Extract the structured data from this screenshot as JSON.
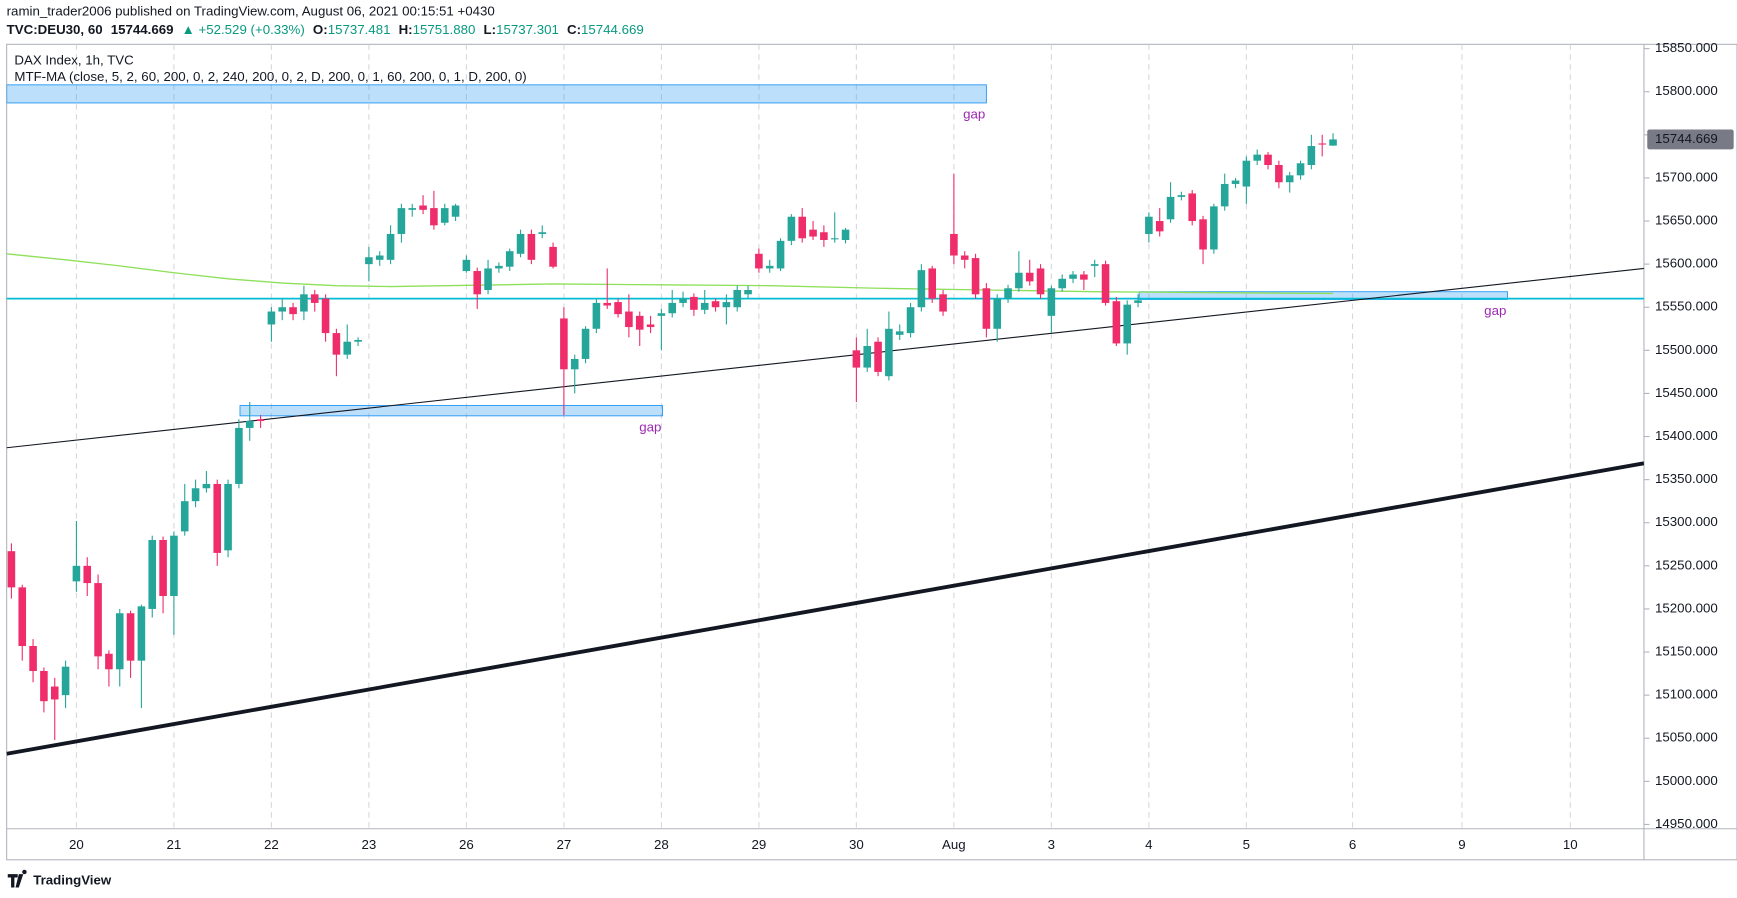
{
  "chart_data": {
    "type": "candlestick",
    "header": {
      "author_line": "ramin_trader2006 published on TradingView.com, August 06, 2021 00:15:51 +0430",
      "symbol": "TVC:DEU30, 60",
      "change": "▲ +52.529 (+0.33%)",
      "ohlc_legend": [
        {
          "label": "O:",
          "value": "15737.481"
        },
        {
          "label": "H:",
          "value": "15751.880"
        },
        {
          "label": "L:",
          "value": "15737.301"
        },
        {
          "label": "C:",
          "value": "15744.669"
        }
      ]
    },
    "title": "DAX Index, 1h, TVC",
    "indicator": "MTF-MA (close, 5, 2, 60, 200, 0, 2, 240, 200, 0, 2, D, 200, 0, 1, 60, 200, 0, 1, D, 200, 0)",
    "brand": "TradingView",
    "last_price": 15744.669,
    "up_color": "#26a69a",
    "down_color": "#ef2d6a",
    "grid": "vertical",
    "xlim": [
      -0.44,
      150.7
    ],
    "ylim": [
      14945,
      15855
    ],
    "xticks": [
      {
        "value": 6,
        "label": "20"
      },
      {
        "value": 15,
        "label": "21"
      },
      {
        "value": 24,
        "label": "22"
      },
      {
        "value": 33,
        "label": "23"
      },
      {
        "value": 42,
        "label": "26"
      },
      {
        "value": 51,
        "label": "27"
      },
      {
        "value": 60,
        "label": "28"
      },
      {
        "value": 69,
        "label": "29"
      },
      {
        "value": 78,
        "label": "30"
      },
      {
        "value": 87,
        "label": "Aug"
      },
      {
        "value": 96,
        "label": "3"
      },
      {
        "value": 105,
        "label": "4"
      },
      {
        "value": 114,
        "label": "5"
      },
      {
        "value": 123.8,
        "label": "6"
      },
      {
        "value": 133.9,
        "label": "9"
      },
      {
        "value": 143.9,
        "label": "10"
      }
    ],
    "yticks": [
      {
        "value": 14950,
        "label": "14950.000"
      },
      {
        "value": 15000,
        "label": "15000.000"
      },
      {
        "value": 15050,
        "label": "15050.000"
      },
      {
        "value": 15100,
        "label": "15100.000"
      },
      {
        "value": 15150,
        "label": "15150.000"
      },
      {
        "value": 15200,
        "label": "15200.000"
      },
      {
        "value": 15250,
        "label": "15250.000"
      },
      {
        "value": 15300,
        "label": "15300.000"
      },
      {
        "value": 15350,
        "label": "15350.000"
      },
      {
        "value": 15400,
        "label": "15400.000"
      },
      {
        "value": 15450,
        "label": "15450.000"
      },
      {
        "value": 15500,
        "label": "15500.000"
      },
      {
        "value": 15550,
        "label": "15550.000"
      },
      {
        "value": 15600,
        "label": "15600.000"
      },
      {
        "value": 15650,
        "label": "15650.000"
      },
      {
        "value": 15700,
        "label": "15700.000"
      },
      {
        "value": 15750,
        "label": "15750.000"
      },
      {
        "value": 15800,
        "label": "15800.000"
      },
      {
        "value": 15850,
        "label": "15850.000"
      }
    ],
    "ohlc": [
      [
        15267,
        15276,
        15212,
        15225
      ],
      [
        15225,
        15228,
        15140,
        15157
      ],
      [
        15157,
        15165,
        15115,
        15128
      ],
      [
        15128,
        15132,
        15080,
        15093
      ],
      [
        15110,
        15120,
        15048,
        15095
      ],
      [
        15100,
        15140,
        15085,
        15133
      ],
      [
        15232,
        15302,
        15220,
        15250
      ],
      [
        15250,
        15260,
        15215,
        15230
      ],
      [
        15230,
        15240,
        15130,
        15145
      ],
      [
        15148,
        15152,
        15110,
        15130
      ],
      [
        15130,
        15200,
        15110,
        15195
      ],
      [
        15195,
        15198,
        15120,
        15140
      ],
      [
        15140,
        15205,
        15085,
        15203
      ],
      [
        15200,
        15285,
        15190,
        15280
      ],
      [
        15280,
        15284,
        15195,
        15215
      ],
      [
        15215,
        15290,
        15170,
        15285
      ],
      [
        15290,
        15345,
        15285,
        15325
      ],
      [
        15325,
        15350,
        15318,
        15340
      ],
      [
        15340,
        15360,
        15335,
        15345
      ],
      [
        15345,
        15350,
        15250,
        15265
      ],
      [
        15268,
        15350,
        15260,
        15345
      ],
      [
        15345,
        15420,
        15340,
        15410
      ],
      [
        15410,
        15440,
        15395,
        15418
      ],
      [
        15420,
        15425,
        15410,
        15418
      ],
      [
        15530,
        15550,
        15510,
        15545
      ],
      [
        15545,
        15560,
        15535,
        15550
      ],
      [
        15550,
        15555,
        15535,
        15542
      ],
      [
        15545,
        15575,
        15535,
        15565
      ],
      [
        15565,
        15570,
        15545,
        15555
      ],
      [
        15560,
        15565,
        15510,
        15520
      ],
      [
        15520,
        15525,
        15470,
        15495
      ],
      [
        15495,
        15530,
        15490,
        15510
      ],
      [
        15510,
        15515,
        15505,
        15512
      ],
      [
        15600,
        15620,
        15580,
        15608
      ],
      [
        15605,
        15615,
        15598,
        15610
      ],
      [
        15605,
        15645,
        15600,
        15635
      ],
      [
        15635,
        15670,
        15625,
        15665
      ],
      [
        15663,
        15670,
        15655,
        15665
      ],
      [
        15668,
        15680,
        15658,
        15663
      ],
      [
        15665,
        15685,
        15640,
        15645
      ],
      [
        15648,
        15670,
        15645,
        15665
      ],
      [
        15655,
        15670,
        15650,
        15668
      ],
      [
        15592,
        15610,
        15590,
        15605
      ],
      [
        15592,
        15596,
        15548,
        15565
      ],
      [
        15570,
        15605,
        15565,
        15595
      ],
      [
        15595,
        15602,
        15590,
        15598
      ],
      [
        15597,
        15618,
        15592,
        15615
      ],
      [
        15612,
        15640,
        15608,
        15635
      ],
      [
        15635,
        15640,
        15600,
        15605
      ],
      [
        15635,
        15645,
        15630,
        15637
      ],
      [
        15620,
        15625,
        15595,
        15597
      ],
      [
        15537,
        15550,
        15425,
        15478
      ],
      [
        15478,
        15495,
        15450,
        15490
      ],
      [
        15490,
        15528,
        15485,
        15525
      ],
      [
        15525,
        15560,
        15520,
        15555
      ],
      [
        15555,
        15595,
        15548,
        15552
      ],
      [
        15556,
        15560,
        15538,
        15542
      ],
      [
        15545,
        15565,
        15515,
        15527
      ],
      [
        15540,
        15545,
        15505,
        15524
      ],
      [
        15530,
        15540,
        15520,
        15527
      ],
      [
        15540,
        15548,
        15500,
        15543
      ],
      [
        15543,
        15570,
        15538,
        15555
      ],
      [
        15555,
        15568,
        15550,
        15560
      ],
      [
        15562,
        15566,
        15540,
        15547
      ],
      [
        15547,
        15570,
        15542,
        15555
      ],
      [
        15557,
        15560,
        15545,
        15550
      ],
      [
        15550,
        15565,
        15530,
        15556
      ],
      [
        15550,
        15575,
        15545,
        15570
      ],
      [
        15565,
        15575,
        15560,
        15570
      ],
      [
        15612,
        15618,
        15590,
        15595
      ],
      [
        15595,
        15605,
        15590,
        15598
      ],
      [
        15595,
        15630,
        15592,
        15627
      ],
      [
        15627,
        15658,
        15622,
        15655
      ],
      [
        15655,
        15665,
        15625,
        15630
      ],
      [
        15640,
        15650,
        15628,
        15632
      ],
      [
        15637,
        15645,
        15620,
        15628
      ],
      [
        15630,
        15660,
        15625,
        15630
      ],
      [
        15628,
        15642,
        15624,
        15640
      ],
      [
        15500,
        15515,
        15440,
        15480
      ],
      [
        15480,
        15525,
        15475,
        15505
      ],
      [
        15510,
        15515,
        15470,
        15475
      ],
      [
        15470,
        15545,
        15465,
        15525
      ],
      [
        15518,
        15530,
        15512,
        15522
      ],
      [
        15520,
        15555,
        15515,
        15550
      ],
      [
        15550,
        15600,
        15545,
        15593
      ],
      [
        15595,
        15598,
        15555,
        15560
      ],
      [
        15565,
        15570,
        15540,
        15545
      ],
      [
        15635,
        15705,
        15600,
        15610
      ],
      [
        15610,
        15615,
        15595,
        15605
      ],
      [
        15607,
        15612,
        15560,
        15565
      ],
      [
        15572,
        15578,
        15515,
        15525
      ],
      [
        15525,
        15565,
        15510,
        15560
      ],
      [
        15560,
        15576,
        15555,
        15572
      ],
      [
        15572,
        15615,
        15568,
        15590
      ],
      [
        15590,
        15605,
        15575,
        15580
      ],
      [
        15595,
        15600,
        15560,
        15565
      ],
      [
        15540,
        15575,
        15520,
        15572
      ],
      [
        15572,
        15588,
        15568,
        15583
      ],
      [
        15583,
        15592,
        15578,
        15588
      ],
      [
        15588,
        15592,
        15570,
        15582
      ],
      [
        15598,
        15605,
        15585,
        15600
      ],
      [
        15600,
        15604,
        15552,
        15555
      ],
      [
        15557,
        15562,
        15505,
        15508
      ],
      [
        15508,
        15558,
        15495,
        15553
      ],
      [
        15555,
        15565,
        15550,
        15558
      ],
      [
        15635,
        15660,
        15625,
        15655
      ],
      [
        15650,
        15665,
        15632,
        15638
      ],
      [
        15652,
        15695,
        15648,
        15678
      ],
      [
        15678,
        15684,
        15674,
        15680
      ],
      [
        15682,
        15686,
        15645,
        15650
      ],
      [
        15652,
        15656,
        15600,
        15617
      ],
      [
        15617,
        15670,
        15612,
        15667
      ],
      [
        15667,
        15705,
        15662,
        15693
      ],
      [
        15693,
        15700,
        15688,
        15697
      ],
      [
        15690,
        15725,
        15670,
        15720
      ],
      [
        15720,
        15733,
        15715,
        15727
      ],
      [
        15727,
        15730,
        15710,
        15715
      ],
      [
        15715,
        15720,
        15688,
        15695
      ],
      [
        15695,
        15707,
        15683,
        15703
      ],
      [
        15703,
        15720,
        15698,
        15717
      ],
      [
        15715,
        15750,
        15710,
        15737
      ],
      [
        15740,
        15750,
        15725,
        15739
      ],
      [
        15737.481,
        15751.88,
        15737.301,
        15744.669
      ]
    ],
    "ma": {
      "color": "#8ee05a",
      "x": [
        -0.44,
        5,
        10,
        15,
        20,
        25,
        30,
        35,
        40,
        50,
        60,
        70,
        80,
        90,
        100,
        110,
        122
      ],
      "values": [
        15612,
        15605,
        15598,
        15590,
        15583,
        15578,
        15575,
        15574,
        15575,
        15577,
        15576,
        15575,
        15572,
        15570,
        15568,
        15567,
        15566
      ]
    },
    "zones": [
      {
        "x": [
          -0.44,
          90.0
        ],
        "y": [
          15808,
          15787
        ],
        "label": "gap"
      },
      {
        "x": [
          21.1,
          60.1
        ],
        "y": [
          15436,
          15424
        ],
        "label": "gap"
      },
      {
        "x": [
          104.1,
          138.1
        ],
        "y": [
          15568,
          15559
        ],
        "label": "gap"
      }
    ],
    "hline": {
      "value": 15560,
      "color": "#00bcd4"
    },
    "trendlines": [
      {
        "x": [
          -0.44,
          150.7
        ],
        "y": [
          15387,
          15595
        ],
        "width": 1,
        "color": "#131722"
      },
      {
        "x": [
          -0.44,
          150.7
        ],
        "y": [
          15032,
          15369
        ],
        "width": 3.5,
        "color": "#131722"
      }
    ]
  }
}
